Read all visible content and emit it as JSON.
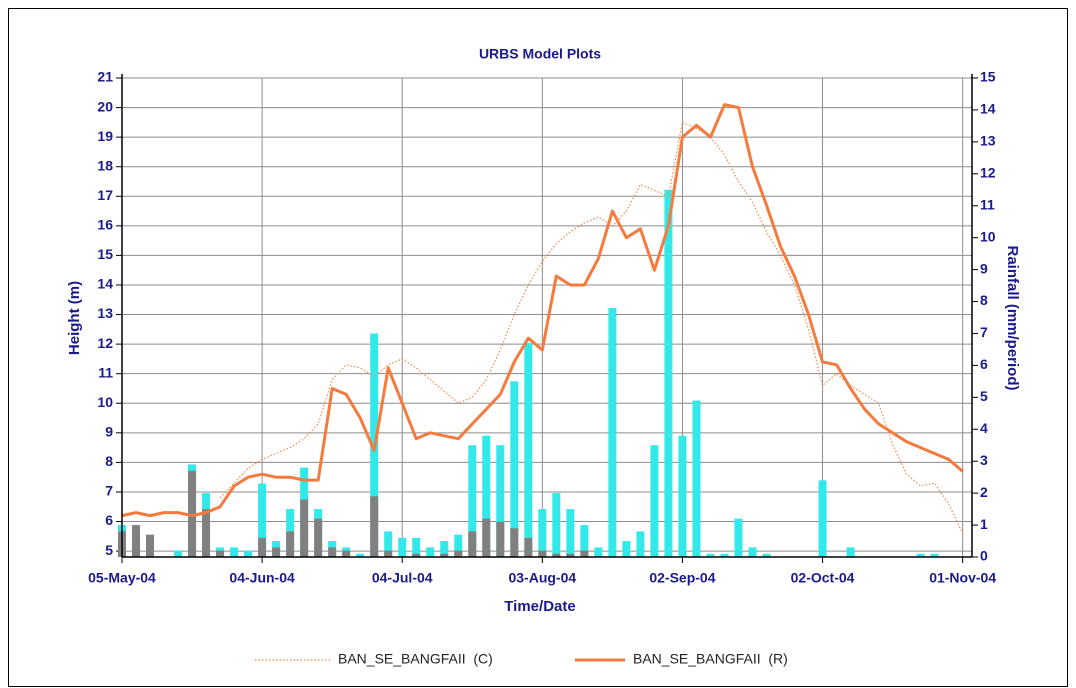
{
  "chart_data": {
    "type": "line",
    "title": "URBS Model Plots",
    "x_label": "Time/Date",
    "y_label": "Height (m)",
    "y2_label": "Rainfall (mm/period)",
    "x": [
      "2004-05-05",
      "2004-05-08",
      "2004-05-11",
      "2004-05-14",
      "2004-05-17",
      "2004-05-20",
      "2004-05-23",
      "2004-05-26",
      "2004-05-29",
      "2004-06-01",
      "2004-06-04",
      "2004-06-07",
      "2004-06-10",
      "2004-06-13",
      "2004-06-16",
      "2004-06-19",
      "2004-06-22",
      "2004-06-25",
      "2004-06-28",
      "2004-07-01",
      "2004-07-04",
      "2004-07-07",
      "2004-07-10",
      "2004-07-13",
      "2004-07-16",
      "2004-07-19",
      "2004-07-22",
      "2004-07-25",
      "2004-07-28",
      "2004-07-31",
      "2004-08-03",
      "2004-08-06",
      "2004-08-09",
      "2004-08-12",
      "2004-08-15",
      "2004-08-18",
      "2004-08-21",
      "2004-08-24",
      "2004-08-27",
      "2004-08-30",
      "2004-09-02",
      "2004-09-05",
      "2004-09-08",
      "2004-09-11",
      "2004-09-14",
      "2004-09-17",
      "2004-09-20",
      "2004-09-23",
      "2004-09-26",
      "2004-09-29",
      "2004-10-02",
      "2004-10-05",
      "2004-10-08",
      "2004-10-11",
      "2004-10-14",
      "2004-10-17",
      "2004-10-20",
      "2004-10-23",
      "2004-10-26",
      "2004-10-29",
      "2004-11-01"
    ],
    "series": [
      {
        "type": "bar",
        "axis": "y2",
        "color": "#33e8e8",
        "values": [
          1.0,
          0.8,
          0.5,
          0,
          0.2,
          2.9,
          2.0,
          0.3,
          0.3,
          0.2,
          2.3,
          0.5,
          1.5,
          2.8,
          1.5,
          0.5,
          0.3,
          0.1,
          7.0,
          0.8,
          0.6,
          0.6,
          0.3,
          0.5,
          0.7,
          3.5,
          3.8,
          3.5,
          5.5,
          6.7,
          1.5,
          2.0,
          1.5,
          1.0,
          0.3,
          7.8,
          0.5,
          0.8,
          3.5,
          11.5,
          3.8,
          4.9,
          0.1,
          0.1,
          1.2,
          0.3,
          0.1,
          0,
          0,
          0,
          2.4,
          0,
          0.3,
          0,
          0,
          0,
          0,
          0.1,
          0.1,
          0,
          0
        ]
      },
      {
        "type": "bar",
        "axis": "y2",
        "color": "#808080",
        "values": [
          0.8,
          1.0,
          0.7,
          0,
          0,
          2.7,
          1.5,
          0.2,
          0,
          0,
          0.6,
          0.3,
          0.8,
          1.8,
          1.2,
          0.3,
          0.2,
          0,
          1.9,
          0.2,
          0,
          0.1,
          0,
          0.1,
          0.2,
          0.8,
          1.2,
          1.1,
          0.9,
          0.6,
          0.2,
          0.1,
          0.1,
          0.2,
          0,
          0,
          0,
          0,
          0,
          0,
          0,
          0,
          0,
          0,
          0,
          0,
          0,
          0,
          0,
          0,
          0,
          0,
          0,
          0,
          0,
          0,
          0,
          0,
          0,
          0,
          0
        ]
      },
      {
        "name": "BAN_SE_BANGFAII  (C)",
        "type": "line",
        "style": "dotted",
        "color": "#f4884a",
        "values": [
          null,
          null,
          null,
          null,
          null,
          null,
          null,
          6.8,
          7.3,
          7.8,
          8.1,
          8.3,
          8.5,
          8.8,
          9.3,
          10.8,
          11.3,
          11.2,
          10.9,
          11.3,
          11.5,
          11.2,
          10.8,
          10.4,
          10.0,
          10.2,
          10.8,
          11.8,
          13.0,
          14.0,
          14.8,
          15.4,
          15.8,
          16.1,
          16.3,
          16.0,
          16.5,
          17.4,
          17.2,
          17.0,
          19.5,
          19.3,
          19.0,
          18.4,
          17.5,
          16.8,
          15.8,
          15.0,
          14.0,
          12.5,
          10.6,
          11.0,
          10.6,
          10.3,
          10.0,
          8.6,
          7.6,
          7.2,
          7.3,
          6.6,
          5.6
        ]
      },
      {
        "name": "BAN_SE_BANGFAII  (R)",
        "type": "line",
        "style": "solid",
        "color": "#f47b3d",
        "values": [
          6.2,
          6.3,
          6.2,
          6.3,
          6.3,
          6.2,
          6.3,
          6.5,
          7.2,
          7.5,
          7.6,
          7.5,
          7.5,
          7.4,
          7.4,
          10.5,
          10.3,
          9.5,
          8.4,
          11.2,
          10.0,
          8.8,
          9.0,
          8.9,
          8.8,
          9.3,
          9.8,
          10.3,
          11.4,
          12.2,
          11.8,
          14.3,
          14.0,
          14.0,
          14.9,
          16.5,
          15.6,
          15.9,
          14.5,
          16.0,
          19.0,
          19.4,
          19.0,
          20.1,
          20.0,
          18.0,
          16.7,
          15.3,
          14.3,
          13.0,
          11.4,
          11.3,
          10.5,
          9.8,
          9.3,
          9.0,
          8.7,
          8.5,
          8.3,
          8.1,
          7.7
        ]
      }
    ],
    "xlim": [
      "2004-05-05",
      "2004-11-03"
    ],
    "xticks": [
      {
        "value": "2004-05-05",
        "label": "05-May-04"
      },
      {
        "value": "2004-06-04",
        "label": "04-Jun-04"
      },
      {
        "value": "2004-07-04",
        "label": "04-Jul-04"
      },
      {
        "value": "2004-08-03",
        "label": "03-Aug-04"
      },
      {
        "value": "2004-09-02",
        "label": "02-Sep-04"
      },
      {
        "value": "2004-10-02",
        "label": "02-Oct-04"
      },
      {
        "value": "2004-11-01",
        "label": "01-Nov-04"
      }
    ],
    "ylim": [
      4.8,
      21
    ],
    "yticks": [
      5,
      6,
      7,
      8,
      9,
      10,
      11,
      12,
      13,
      14,
      15,
      16,
      17,
      18,
      19,
      20,
      21
    ],
    "y2lim": [
      0,
      15
    ],
    "y2ticks": [
      0,
      1,
      2,
      3,
      4,
      5,
      6,
      7,
      8,
      9,
      10,
      11,
      12,
      13,
      14,
      15
    ],
    "grid": true,
    "legend": "bottom"
  }
}
